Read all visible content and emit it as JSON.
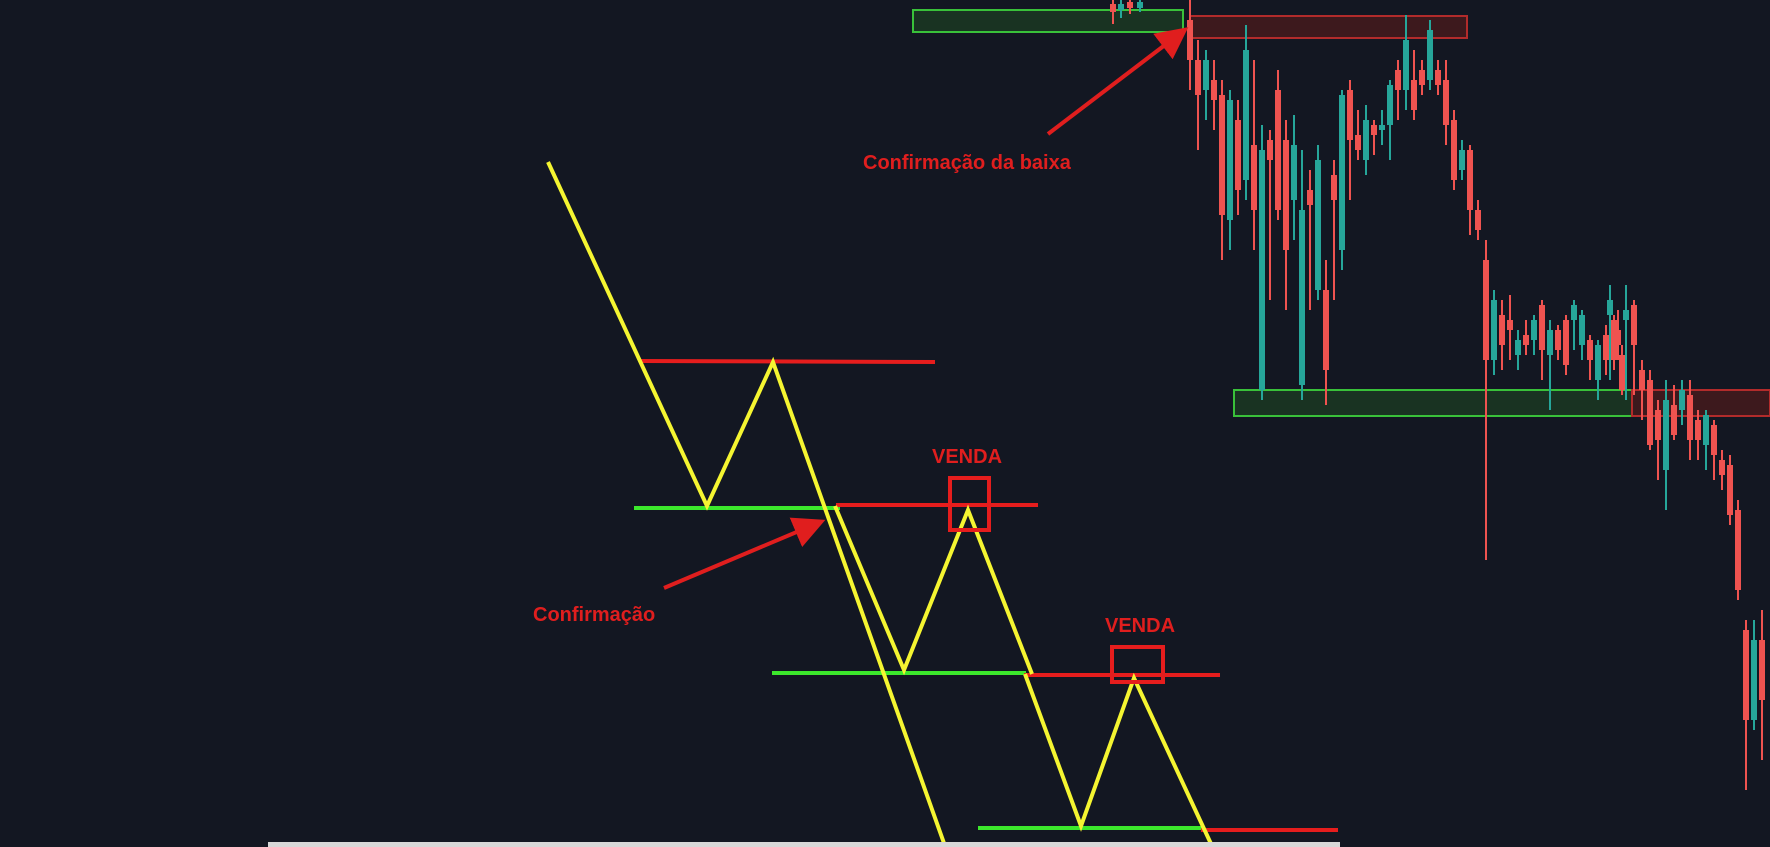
{
  "chart_data": [
    {
      "type": "line",
      "title": "",
      "description_role": "schematic",
      "annotations": {
        "confirmation_label": "Confirmação",
        "sell_label_1": "VENDA",
        "sell_label_2": "VENDA"
      },
      "colors": {
        "price_path": "#f5f531",
        "resistance": "#e61d1d",
        "support": "#3ce82c",
        "annotation": "#e01e1e"
      }
    },
    {
      "type": "candlestick",
      "title": "",
      "annotations": {
        "confirmation_label": "Confirmação da baixa"
      },
      "colors": {
        "bull": "#26a69a",
        "bear": "#ef5350",
        "support_zone": "#2e7d32",
        "resistance_zone": "#8b1a1a"
      }
    }
  ],
  "colors": {
    "background": "#131722"
  }
}
